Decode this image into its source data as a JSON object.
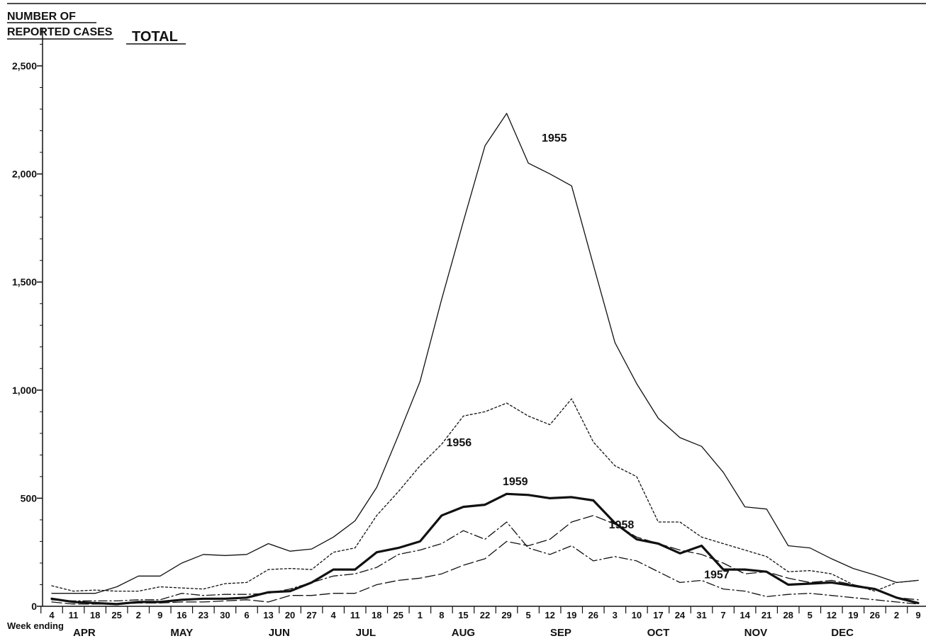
{
  "header": {
    "ylabel_line1": "NUMBER OF",
    "ylabel_line2": "REPORTED CASES",
    "title": "TOTAL",
    "xlabel": "Week ending"
  },
  "chart_data": {
    "type": "line",
    "title": "TOTAL",
    "ylabel": "NUMBER OF REPORTED CASES",
    "xlabel": "Week ending",
    "ylim": [
      0,
      2500
    ],
    "yticks": [
      0,
      500,
      1000,
      1500,
      2000,
      2500
    ],
    "ytick_labels": [
      "0",
      "500",
      "1,000",
      "1,500",
      "2,000",
      "2,500"
    ],
    "grid": false,
    "x": [
      "4",
      "11",
      "18",
      "25",
      "2",
      "9",
      "16",
      "23",
      "30",
      "6",
      "13",
      "20",
      "27",
      "4",
      "11",
      "18",
      "25",
      "1",
      "8",
      "15",
      "22",
      "29",
      "5",
      "12",
      "19",
      "26",
      "3",
      "10",
      "17",
      "24",
      "31",
      "7",
      "14",
      "21",
      "28",
      "5",
      "12",
      "19",
      "26",
      "2",
      "9"
    ],
    "months": [
      {
        "label": "APR",
        "start": 0,
        "end": 3
      },
      {
        "label": "MAY",
        "start": 4,
        "end": 8
      },
      {
        "label": "JUN",
        "start": 9,
        "end": 12
      },
      {
        "label": "JUL",
        "start": 13,
        "end": 16
      },
      {
        "label": "AUG",
        "start": 17,
        "end": 21
      },
      {
        "label": "SEP",
        "start": 22,
        "end": 25
      },
      {
        "label": "OCT",
        "start": 26,
        "end": 30
      },
      {
        "label": "NOV",
        "start": 31,
        "end": 34
      },
      {
        "label": "DEC",
        "start": 35,
        "end": 38
      }
    ],
    "series": [
      {
        "name": "1955",
        "style": "solid-thin",
        "values": [
          60,
          60,
          60,
          90,
          140,
          140,
          200,
          240,
          235,
          240,
          290,
          255,
          265,
          320,
          395,
          550,
          790,
          1040,
          1420,
          1780,
          2130,
          2280,
          2050,
          2000,
          1945,
          1580,
          1220,
          1030,
          870,
          780,
          740,
          620,
          460,
          450,
          280,
          270,
          220,
          175,
          145,
          110,
          120
        ],
        "label_at": 23.2,
        "label_value": 2150
      },
      {
        "name": "1956",
        "style": "dotted",
        "values": [
          95,
          70,
          75,
          70,
          70,
          90,
          85,
          80,
          105,
          110,
          170,
          175,
          170,
          250,
          270,
          420,
          530,
          650,
          750,
          880,
          900,
          940,
          880,
          840,
          960,
          760,
          650,
          600,
          390,
          390,
          320,
          290,
          260,
          230,
          160,
          165,
          150,
          100,
          70,
          110,
          120
        ],
        "label_at": 18.8,
        "label_value": 740
      },
      {
        "name": "1957",
        "style": "dash-dot",
        "values": [
          30,
          25,
          25,
          25,
          30,
          30,
          60,
          50,
          55,
          55,
          60,
          80,
          110,
          140,
          150,
          180,
          240,
          260,
          290,
          350,
          310,
          390,
          270,
          240,
          280,
          210,
          230,
          210,
          160,
          110,
          120,
          80,
          70,
          45,
          55,
          60,
          50,
          40,
          30,
          20,
          10
        ],
        "label_at": 30.7,
        "label_value": 130
      },
      {
        "name": "1958",
        "style": "dashed",
        "values": [
          20,
          10,
          10,
          10,
          15,
          15,
          20,
          20,
          25,
          30,
          20,
          50,
          50,
          60,
          60,
          100,
          120,
          130,
          150,
          190,
          220,
          300,
          280,
          310,
          390,
          420,
          380,
          320,
          290,
          260,
          240,
          200,
          150,
          160,
          130,
          110,
          120,
          100,
          80,
          40,
          30
        ],
        "label_at": 26.3,
        "label_value": 360
      },
      {
        "name": "1959",
        "style": "bold",
        "values": [
          35,
          20,
          15,
          10,
          20,
          20,
          30,
          35,
          35,
          40,
          65,
          70,
          110,
          170,
          170,
          250,
          270,
          300,
          420,
          460,
          470,
          520,
          515,
          500,
          505,
          490,
          385,
          310,
          290,
          245,
          280,
          170,
          170,
          160,
          100,
          105,
          110,
          95,
          80,
          40,
          15
        ],
        "label_at": 21.4,
        "label_value": 560
      }
    ]
  }
}
